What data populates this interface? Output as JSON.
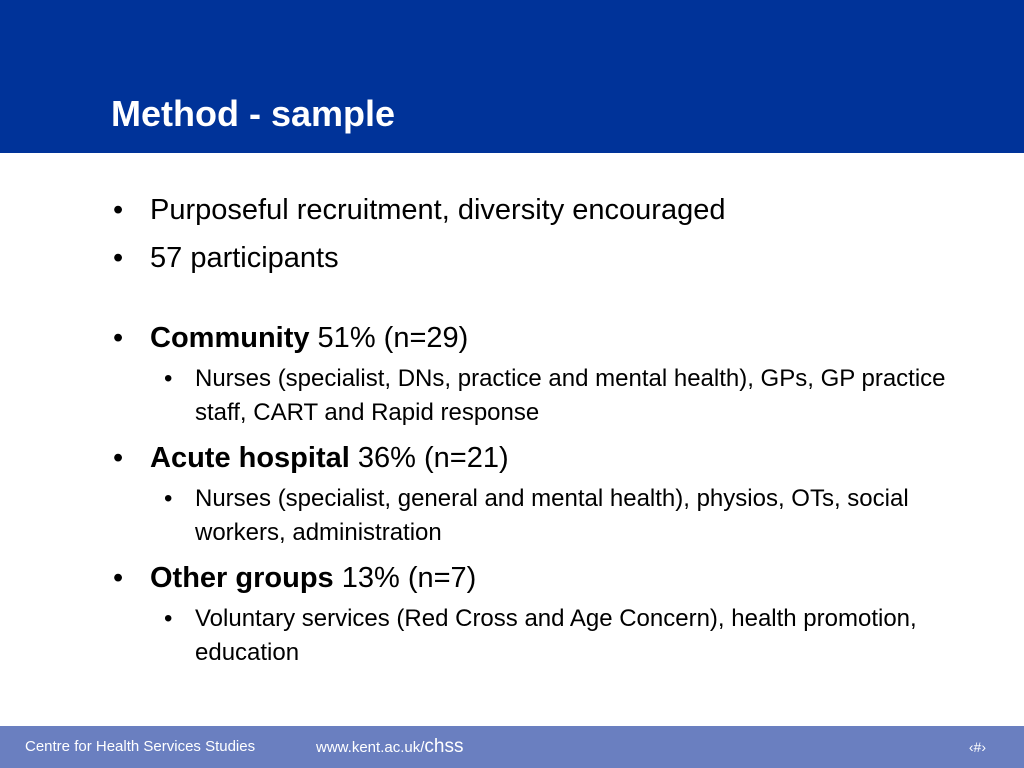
{
  "slide": {
    "title": "Method - sample",
    "bullets": [
      {
        "bullet_char": "•",
        "text": "Purposeful recruitment, diversity encouraged"
      },
      {
        "bullet_char": "•",
        "text": "57 participants"
      }
    ],
    "groups": [
      {
        "bullet_char": "•",
        "name": "Community",
        "stat": " 51% (n=29)",
        "sub_bullet_char": "•",
        "detail": "Nurses (specialist, DNs, practice and mental health), GPs, GP practice staff, CART and Rapid response"
      },
      {
        "bullet_char": "•",
        "name": "Acute hospital",
        "stat": " 36% (n=21)",
        "sub_bullet_char": "•",
        "detail": "Nurses (specialist, general and mental health), physios, OTs, social workers, administration"
      },
      {
        "bullet_char": "•",
        "name": "Other groups",
        "stat": " 13% (n=7)",
        "sub_bullet_char": "•",
        "detail": "Voluntary services (Red Cross and Age Concern), health promotion, education"
      }
    ]
  },
  "footer": {
    "centre_name": "Centre for Health Services Studies",
    "url_prefix": "www.kent.ac.uk/",
    "url_suffix": "chss",
    "slide_number": "‹#›"
  },
  "colors": {
    "title_bar": "#003399",
    "footer_bar": "#6a7fc0",
    "title_text": "#ffffff",
    "body_text": "#000000"
  }
}
